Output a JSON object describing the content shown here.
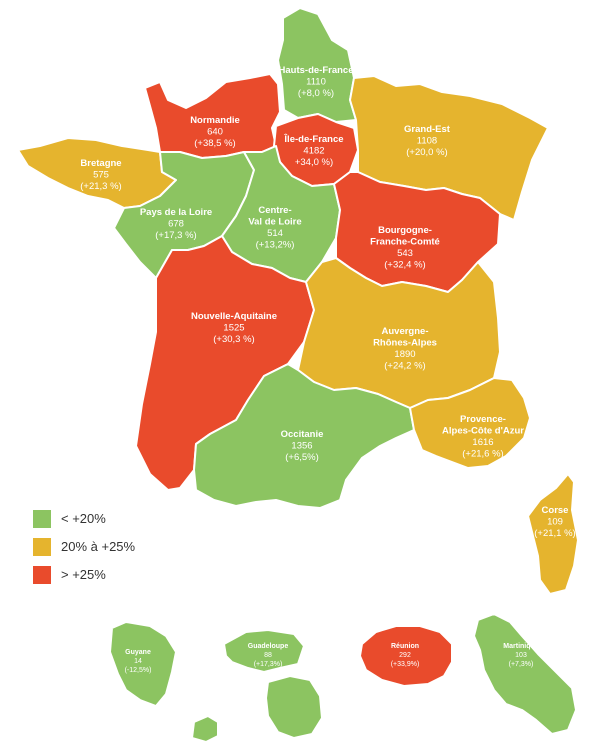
{
  "colors": {
    "low": "#8cc461",
    "mid": "#e5b42e",
    "high": "#e94b2c"
  },
  "legend": [
    {
      "label": "< +20%",
      "color": "#8cc461"
    },
    {
      "label": "20% à +25%",
      "color": "#e5b42e"
    },
    {
      "label": "> +25%",
      "color": "#e94b2c"
    }
  ],
  "regions": [
    {
      "id": "hauts-de-france",
      "name": [
        "Hauts-de-France"
      ],
      "value": "1110",
      "change": "(+8,0 %)",
      "color": "#8cc461"
    },
    {
      "id": "normandie",
      "name": [
        "Normandie"
      ],
      "value": "640",
      "change": "(+38,5 %)",
      "color": "#e94b2c"
    },
    {
      "id": "ile-de-france",
      "name": [
        "Île-de-France"
      ],
      "value": "4182",
      "change": "+34,0 %)",
      "color": "#e94b2c"
    },
    {
      "id": "grand-est",
      "name": [
        "Grand-Est"
      ],
      "value": "1108",
      "change": "(+20,0 %)",
      "color": "#e5b42e"
    },
    {
      "id": "bretagne",
      "name": [
        "Bretagne"
      ],
      "value": "575",
      "change": "(+21,3 %)",
      "color": "#e5b42e"
    },
    {
      "id": "pays-de-la-loire",
      "name": [
        "Pays de la Loire"
      ],
      "value": "678",
      "change": "(+17,3 %)",
      "color": "#8cc461"
    },
    {
      "id": "centre-val-de-loire",
      "name": [
        "Centre-",
        "Val de Loire"
      ],
      "value": "514",
      "change": "(+13,2%)",
      "color": "#8cc461"
    },
    {
      "id": "bourgogne-franche-comte",
      "name": [
        "Bourgogne-",
        "Franche-Comté"
      ],
      "value": "543",
      "change": "(+32,4 %)",
      "color": "#e94b2c"
    },
    {
      "id": "nouvelle-aquitaine",
      "name": [
        "Nouvelle-Aquitaine"
      ],
      "value": "1525",
      "change": "(+30,3 %)",
      "color": "#e94b2c"
    },
    {
      "id": "auvergne-rhone-alpes",
      "name": [
        "Auvergne-",
        "Rhônes-Alpes"
      ],
      "value": "1890",
      "change": "(+24,2 %)",
      "color": "#e5b42e"
    },
    {
      "id": "occitanie",
      "name": [
        "Occitanie"
      ],
      "value": "1356",
      "change": "(+6,5%)",
      "color": "#8cc461"
    },
    {
      "id": "paca",
      "name": [
        "Provence-",
        "Alpes-Côte d'Azur"
      ],
      "value": "1616",
      "change": "(+21,6 %)",
      "color": "#e5b42e"
    },
    {
      "id": "corse",
      "name": [
        "Corse"
      ],
      "value": "109",
      "change": "(+21,1 %)",
      "color": "#e5b42e"
    },
    {
      "id": "guyane",
      "name": [
        "Guyane"
      ],
      "value": "14",
      "change": "(-12,5%)",
      "color": "#8cc461"
    },
    {
      "id": "guadeloupe",
      "name": [
        "Guadeloupe"
      ],
      "value": "88",
      "change": "(+17,3%)",
      "color": "#8cc461"
    },
    {
      "id": "reunion",
      "name": [
        "Réunion"
      ],
      "value": "292",
      "change": "(+33,9%)",
      "color": "#e94b2c"
    },
    {
      "id": "martinique",
      "name": [
        "Martinique"
      ],
      "value": "103",
      "change": "(+7,3%)",
      "color": "#8cc461"
    }
  ]
}
